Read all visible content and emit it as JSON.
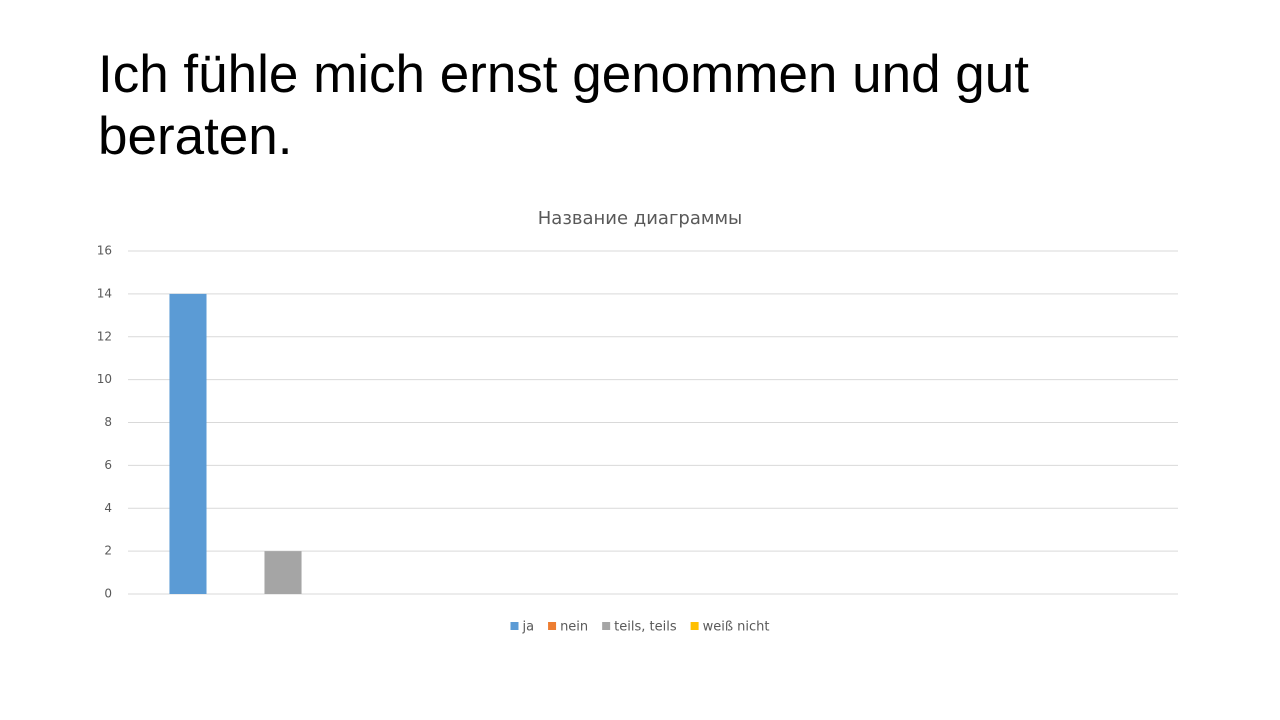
{
  "slide_title": "Ich fühle mich ernst genommen und gut beraten.",
  "chart_data": {
    "type": "bar",
    "title": "Название диаграммы",
    "categories": [
      null,
      null,
      null,
      null
    ],
    "series": [
      {
        "name": "ja",
        "color": "#5b9bd5",
        "values": [
          14,
          null,
          null,
          null
        ]
      },
      {
        "name": "nein",
        "color": "#ed7d31",
        "values": [
          null,
          null,
          null,
          null
        ]
      },
      {
        "name": "teils, teils",
        "color": "#a5a5a5",
        "values": [
          2,
          null,
          null,
          null
        ]
      },
      {
        "name": "weiß nicht",
        "color": "#ffc000",
        "values": [
          null,
          null,
          null,
          null
        ]
      }
    ],
    "ylim": [
      0,
      16
    ],
    "yticks": [
      0,
      2,
      4,
      6,
      8,
      10,
      12,
      14,
      16
    ],
    "grid": true,
    "legend": "bottom"
  }
}
